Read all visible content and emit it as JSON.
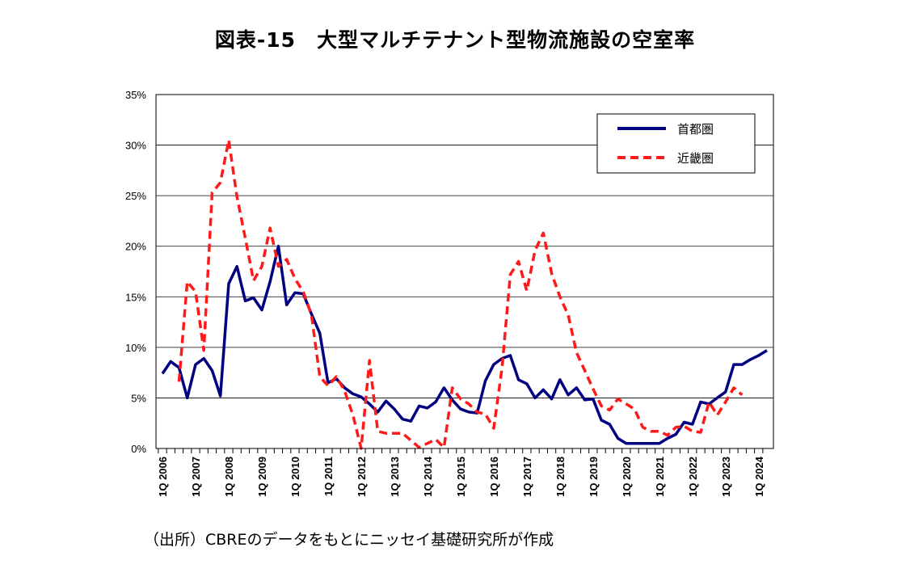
{
  "title": "図表-15　大型マルチテナント型物流施設の空室率",
  "source": "（出所）CBREのデータをもとにニッセイ基礎研究所が作成",
  "chart_data": {
    "type": "line",
    "title": "図表-15　大型マルチテナント型物流施設の空室率",
    "xlabel": "",
    "ylabel": "",
    "ylim": [
      0,
      35
    ],
    "y_ticks": [
      "0%",
      "5%",
      "10%",
      "15%",
      "20%",
      "25%",
      "30%",
      "35%"
    ],
    "x_tick_labels": [
      "1Q 2006",
      "1Q 2007",
      "1Q 2008",
      "1Q 2009",
      "1Q 2010",
      "1Q 2011",
      "1Q 2012",
      "1Q 2013",
      "1Q 2014",
      "1Q 2015",
      "1Q 2016",
      "1Q 2017",
      "1Q 2018",
      "1Q 2019",
      "1Q 2020",
      "1Q 2021",
      "1Q 2022",
      "1Q 2023",
      "1Q 2024"
    ],
    "start_quarter": "1Q 2006",
    "legend_position": "top-right",
    "series": [
      {
        "name": "首都圏",
        "color": "#000080",
        "style": "solid",
        "start_index": 0,
        "values": [
          7.4,
          8.6,
          8.0,
          5.0,
          8.3,
          8.9,
          7.7,
          5.2,
          16.3,
          18.0,
          14.6,
          14.9,
          13.7,
          16.5,
          20.0,
          14.2,
          15.4,
          15.3,
          13.3,
          11.4,
          6.5,
          6.9,
          6.0,
          5.4,
          5.1,
          4.4,
          3.6,
          4.7,
          3.9,
          2.9,
          2.7,
          4.2,
          4.0,
          4.6,
          6.0,
          4.8,
          3.9,
          3.6,
          3.5,
          6.7,
          8.3,
          8.9,
          9.2,
          6.8,
          6.4,
          5.0,
          5.8,
          4.9,
          6.8,
          5.3,
          6.0,
          4.8,
          4.9,
          2.8,
          2.4,
          1.0,
          0.5,
          0.5,
          0.5,
          0.5,
          0.5,
          1.0,
          1.4,
          2.6,
          2.4,
          4.6,
          4.4,
          5.0,
          5.6,
          8.3,
          8.3,
          8.8,
          9.2,
          9.7
        ]
      },
      {
        "name": "近畿圏",
        "color": "#ff1a1a",
        "style": "dashed",
        "start_index": 2,
        "values": [
          6.6,
          16.5,
          15.5,
          9.7,
          25.3,
          26.3,
          30.5,
          24.9,
          20.8,
          16.6,
          18.0,
          21.8,
          18.0,
          18.7,
          16.8,
          15.5,
          13.2,
          7.1,
          6.2,
          7.1,
          5.7,
          3.3,
          0.0,
          8.7,
          1.7,
          1.5,
          1.5,
          1.5,
          0.8,
          0.1,
          0.5,
          0.9,
          0.1,
          6.0,
          4.9,
          4.4,
          3.6,
          3.4,
          2.0,
          7.9,
          17.2,
          18.5,
          15.6,
          19.6,
          21.3,
          17.3,
          15.0,
          13.2,
          9.5,
          7.7,
          5.9,
          4.2,
          3.8,
          4.9,
          4.4,
          3.9,
          2.1,
          1.7,
          1.7,
          1.3,
          2.1,
          2.2,
          1.7,
          1.6,
          4.6,
          3.3,
          4.6,
          6.0,
          5.3
        ]
      }
    ]
  }
}
